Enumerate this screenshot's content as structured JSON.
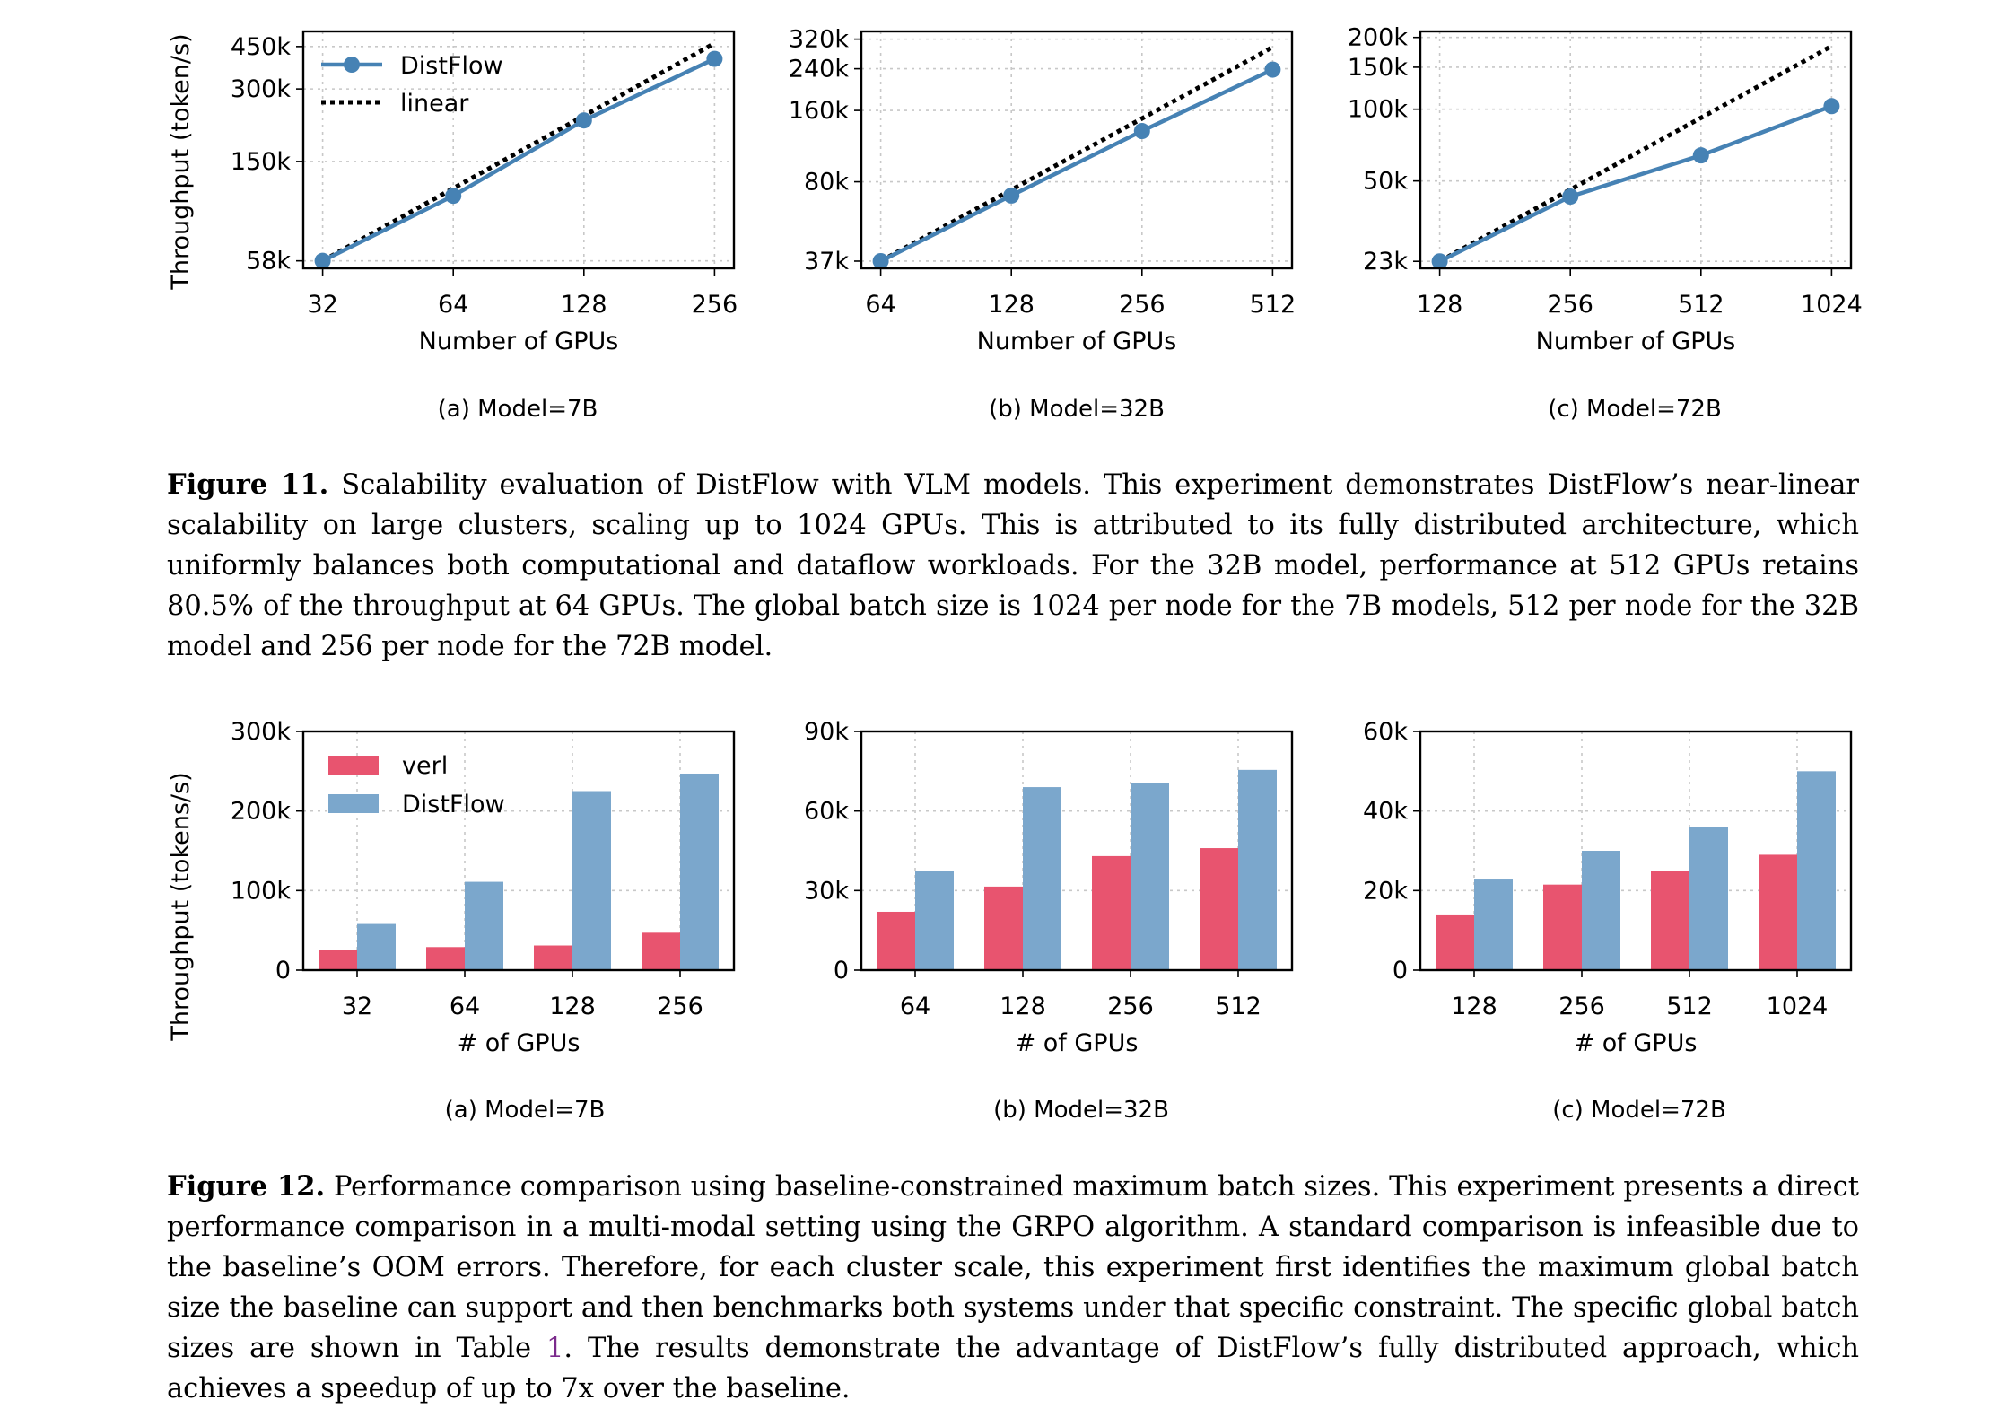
{
  "figure11": {
    "ylabel": "Throughput (token/s)",
    "caption_label": "Figure 11.",
    "caption_parts": [
      "Scalability evaluation of DistFlow with VLM models. This experiment demonstrates DistFlow’s near-linear scalability on large clusters, scaling up to 1024 GPUs. This is attributed to its fully distributed architecture, which uniformly balances both computational and dataflow workloads. For the 32B model, performance at 512 GPUs retains 80.5% of the throughput at 64 GPUs. The global batch size is 1024 per node for the 7B models, 512 per node for the 32B model and 256 per node for the 72B model."
    ],
    "subcaptions": [
      "(a) Model=7B",
      "(b) Model=32B",
      "(c) Model=72B"
    ]
  },
  "figure12": {
    "ylabel": "Throughput (tokens/s)",
    "caption_label": "Figure 12.",
    "caption_before": "Performance comparison using baseline-constrained maximum batch sizes. This experiment presents a direct performance comparison in a multi-modal setting using the GRPO algorithm. A standard comparison is infeasible due to the baseline’s OOM errors. Therefore, for each cluster scale, this experiment first identifies the maximum global batch size the baseline can support and then benchmarks both systems under that specific constraint. The specific global batch sizes are shown in Table ",
    "caption_ref": "1",
    "caption_after": ". The results demonstrate the advantage of DistFlow’s fully distributed approach, which achieves a speedup of up to 7x over the baseline.",
    "subcaptions": [
      "(a) Model=7B",
      "(b) Model=32B",
      "(c) Model=72B"
    ]
  },
  "colors": {
    "distflow_line": "#4682b4",
    "verl": "#e8546f",
    "distflow_bar": "#7ba7cc"
  },
  "chart_data": [
    {
      "type": "line",
      "figure": "11a",
      "scale": "log",
      "xlabel": "Number of GPUs",
      "ylabel": "Throughput (token/s)",
      "x": [
        "32",
        "64",
        "128",
        "256"
      ],
      "yticks": [
        58000,
        150000,
        300000,
        450000
      ],
      "ytick_labels": [
        "58k",
        "150k",
        "300k",
        "450k"
      ],
      "ylim": [
        54000,
        520000
      ],
      "series": [
        {
          "name": "DistFlow",
          "values": [
            58000,
            108000,
            222000,
            400000
          ],
          "style": "solid-marker"
        },
        {
          "name": "linear",
          "values": [
            58000,
            116000,
            232000,
            464000
          ],
          "style": "dotted"
        }
      ],
      "legend": "top-left"
    },
    {
      "type": "line",
      "figure": "11b",
      "scale": "log",
      "xlabel": "Number of GPUs",
      "ylabel": "",
      "x": [
        "64",
        "128",
        "256",
        "512"
      ],
      "yticks": [
        37000,
        80000,
        160000,
        240000,
        320000
      ],
      "ytick_labels": [
        "37k",
        "80k",
        "160k",
        "240k",
        "320k"
      ],
      "ylim": [
        34500,
        345000
      ],
      "series": [
        {
          "name": "DistFlow",
          "values": [
            37000,
            70000,
            131000,
            238000
          ],
          "style": "solid-marker"
        },
        {
          "name": "linear",
          "values": [
            37000,
            74000,
            148000,
            296000
          ],
          "style": "dotted"
        }
      ]
    },
    {
      "type": "line",
      "figure": "11c",
      "scale": "log",
      "xlabel": "Number of GPUs",
      "ylabel": "",
      "x": [
        "128",
        "256",
        "512",
        "1024"
      ],
      "yticks": [
        23000,
        50000,
        100000,
        150000,
        200000
      ],
      "ytick_labels": [
        "23k",
        "50k",
        "100k",
        "150k",
        "200k"
      ],
      "ylim": [
        21500,
        212000
      ],
      "series": [
        {
          "name": "DistFlow",
          "values": [
            23000,
            43000,
            64000,
            103000
          ],
          "style": "solid-marker"
        },
        {
          "name": "linear",
          "values": [
            23000,
            46000,
            92000,
            184000
          ],
          "style": "dotted"
        }
      ]
    },
    {
      "type": "bar",
      "figure": "12a",
      "xlabel": "# of GPUs",
      "ylabel": "Throughput (tokens/s)",
      "categories": [
        "32",
        "64",
        "128",
        "256"
      ],
      "yticks": [
        0,
        100000,
        200000,
        300000
      ],
      "ytick_labels": [
        "0",
        "100k",
        "200k",
        "300k"
      ],
      "ylim": [
        0,
        300000
      ],
      "series": [
        {
          "name": "verl",
          "values": [
            25000,
            29000,
            31000,
            47000
          ]
        },
        {
          "name": "DistFlow",
          "values": [
            58000,
            111000,
            225000,
            247000
          ]
        }
      ],
      "legend": "top-left"
    },
    {
      "type": "bar",
      "figure": "12b",
      "xlabel": "# of GPUs",
      "ylabel": "",
      "categories": [
        "64",
        "128",
        "256",
        "512"
      ],
      "yticks": [
        0,
        30000,
        60000,
        90000
      ],
      "ytick_labels": [
        "0",
        "30k",
        "60k",
        "90k"
      ],
      "ylim": [
        0,
        90000
      ],
      "series": [
        {
          "name": "verl",
          "values": [
            22000,
            31500,
            43000,
            46000
          ]
        },
        {
          "name": "DistFlow",
          "values": [
            37500,
            69000,
            70500,
            75500
          ]
        }
      ]
    },
    {
      "type": "bar",
      "figure": "12c",
      "xlabel": "# of GPUs",
      "ylabel": "",
      "categories": [
        "128",
        "256",
        "512",
        "1024"
      ],
      "yticks": [
        0,
        20000,
        40000,
        60000
      ],
      "ytick_labels": [
        "0",
        "20k",
        "40k",
        "60k"
      ],
      "ylim": [
        0,
        60000
      ],
      "series": [
        {
          "name": "verl",
          "values": [
            14000,
            21500,
            25000,
            29000
          ]
        },
        {
          "name": "DistFlow",
          "values": [
            23000,
            30000,
            36000,
            50000
          ]
        }
      ]
    }
  ]
}
